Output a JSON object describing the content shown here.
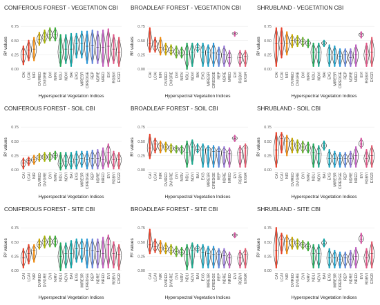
{
  "chart_data": {
    "type": "violin",
    "indices": [
      "CAI",
      "LCAI",
      "NIR",
      "DVIRED",
      "DVIGRE",
      "DVI",
      "NIRV",
      "NDLI",
      "NDVI",
      "BAI",
      "EXG",
      "MIRESR",
      "CIREDGE",
      "REP",
      "NDRE",
      "NRED",
      "EVI",
      "RGBVI",
      "EXGR"
    ],
    "ylabel": "R² values",
    "xlabel": "Hyperspectral Vegetation Indices",
    "yticks": [
      "0.00",
      "0.25",
      "0.50",
      "0.75"
    ],
    "ylim": [
      0,
      0.8
    ],
    "colors": [
      "#e8402a",
      "#e8402a",
      "#f08a0c",
      "#c9a500",
      "#a8b400",
      "#6cb42c",
      "#3cae3a",
      "#1ea85a",
      "#18a88c",
      "#14a6a6",
      "#16a4bb",
      "#1aa0cc",
      "#2a96d8",
      "#5e86dc",
      "#9474d4",
      "#c062c0",
      "#d858a4",
      "#e05888",
      "#e25c70"
    ],
    "panels": [
      {
        "title": "CONIFEROUS FOREST - VEGETATION CBI",
        "medians": [
          0.25,
          0.33,
          0.35,
          0.52,
          0.56,
          0.6,
          0.6,
          0.3,
          0.35,
          0.35,
          0.45,
          0.45,
          0.4,
          0.42,
          0.38,
          0.38,
          0.4,
          0.35,
          0.3
        ],
        "ranges": [
          [
            0.08,
            0.4
          ],
          [
            0.15,
            0.5
          ],
          [
            0.15,
            0.55
          ],
          [
            0.42,
            0.64
          ],
          [
            0.46,
            0.68
          ],
          [
            0.5,
            0.72
          ],
          [
            0.5,
            0.72
          ],
          [
            0.05,
            0.6
          ],
          [
            0.1,
            0.6
          ],
          [
            0.05,
            0.62
          ],
          [
            0.2,
            0.62
          ],
          [
            0.2,
            0.66
          ],
          [
            0.1,
            0.66
          ],
          [
            0.1,
            0.68
          ],
          [
            0.1,
            0.66
          ],
          [
            0.05,
            0.68
          ],
          [
            0.05,
            0.7
          ],
          [
            0.1,
            0.6
          ],
          [
            0.05,
            0.55
          ]
        ]
      },
      {
        "title": "BROADLEAF FOREST - VEGETATION CBI",
        "medians": [
          0.45,
          0.4,
          0.38,
          0.35,
          0.32,
          0.3,
          0.28,
          0.25,
          0.3,
          0.38,
          0.3,
          0.3,
          0.28,
          0.25,
          0.25,
          0.2,
          0.62,
          0.2,
          0.22
        ],
        "ranges": [
          [
            0.3,
            0.72
          ],
          [
            0.3,
            0.55
          ],
          [
            0.25,
            0.55
          ],
          [
            0.25,
            0.45
          ],
          [
            0.25,
            0.42
          ],
          [
            0.2,
            0.4
          ],
          [
            0.2,
            0.38
          ],
          [
            0.0,
            0.45
          ],
          [
            0.05,
            0.45
          ],
          [
            0.3,
            0.45
          ],
          [
            0.05,
            0.45
          ],
          [
            0.05,
            0.42
          ],
          [
            0.05,
            0.45
          ],
          [
            0.05,
            0.38
          ],
          [
            0.05,
            0.4
          ],
          [
            0.05,
            0.32
          ],
          [
            0.58,
            0.65
          ],
          [
            0.05,
            0.32
          ],
          [
            0.05,
            0.32
          ]
        ]
      },
      {
        "title": "SHRUBLAND - VEGETATION CBI",
        "medians": [
          0.45,
          0.45,
          0.45,
          0.5,
          0.5,
          0.48,
          0.45,
          0.3,
          0.3,
          0.45,
          0.25,
          0.25,
          0.22,
          0.25,
          0.2,
          0.25,
          0.6,
          0.25,
          0.3
        ],
        "ranges": [
          [
            0.05,
            0.72
          ],
          [
            0.2,
            0.72
          ],
          [
            0.25,
            0.65
          ],
          [
            0.38,
            0.6
          ],
          [
            0.4,
            0.58
          ],
          [
            0.4,
            0.55
          ],
          [
            0.38,
            0.52
          ],
          [
            0.05,
            0.45
          ],
          [
            0.05,
            0.45
          ],
          [
            0.4,
            0.5
          ],
          [
            0.05,
            0.42
          ],
          [
            0.05,
            0.4
          ],
          [
            0.05,
            0.35
          ],
          [
            0.05,
            0.35
          ],
          [
            0.05,
            0.35
          ],
          [
            0.05,
            0.42
          ],
          [
            0.55,
            0.65
          ],
          [
            0.05,
            0.45
          ],
          [
            0.05,
            0.55
          ]
        ]
      },
      {
        "title": "CONIFEROUS FOREST - SOIL CBI",
        "medians": [
          0.12,
          0.16,
          0.18,
          0.22,
          0.22,
          0.22,
          0.25,
          0.1,
          0.15,
          0.15,
          0.18,
          0.2,
          0.18,
          0.2,
          0.2,
          0.18,
          0.3,
          0.18,
          0.18
        ],
        "ranges": [
          [
            0.02,
            0.2
          ],
          [
            0.08,
            0.22
          ],
          [
            0.1,
            0.25
          ],
          [
            0.15,
            0.28
          ],
          [
            0.15,
            0.3
          ],
          [
            0.15,
            0.3
          ],
          [
            0.18,
            0.32
          ],
          [
            0.0,
            0.3
          ],
          [
            0.02,
            0.3
          ],
          [
            0.02,
            0.3
          ],
          [
            0.02,
            0.32
          ],
          [
            0.05,
            0.32
          ],
          [
            0.02,
            0.32
          ],
          [
            0.02,
            0.34
          ],
          [
            0.02,
            0.35
          ],
          [
            0.02,
            0.38
          ],
          [
            0.05,
            0.45
          ],
          [
            0.02,
            0.32
          ],
          [
            0.02,
            0.3
          ]
        ]
      },
      {
        "title": "BROADLEAF FOREST - SOIL CBI",
        "medians": [
          0.38,
          0.45,
          0.42,
          0.4,
          0.38,
          0.37,
          0.35,
          0.3,
          0.4,
          0.36,
          0.35,
          0.35,
          0.32,
          0.32,
          0.3,
          0.28,
          0.55,
          0.3,
          0.38
        ],
        "ranges": [
          [
            0.2,
            0.62
          ],
          [
            0.3,
            0.55
          ],
          [
            0.3,
            0.5
          ],
          [
            0.32,
            0.48
          ],
          [
            0.3,
            0.45
          ],
          [
            0.3,
            0.42
          ],
          [
            0.28,
            0.42
          ],
          [
            0.05,
            0.5
          ],
          [
            0.1,
            0.52
          ],
          [
            0.3,
            0.45
          ],
          [
            0.05,
            0.45
          ],
          [
            0.05,
            0.42
          ],
          [
            0.05,
            0.42
          ],
          [
            0.05,
            0.4
          ],
          [
            0.05,
            0.4
          ],
          [
            0.05,
            0.38
          ],
          [
            0.5,
            0.6
          ],
          [
            0.05,
            0.42
          ],
          [
            0.05,
            0.45
          ]
        ]
      },
      {
        "title": "SHRUBLAND - SOIL CBI",
        "medians": [
          0.35,
          0.55,
          0.5,
          0.45,
          0.42,
          0.4,
          0.38,
          0.3,
          0.28,
          0.42,
          0.2,
          0.2,
          0.2,
          0.2,
          0.2,
          0.25,
          0.45,
          0.2,
          0.25
        ],
        "ranges": [
          [
            0.05,
            0.65
          ],
          [
            0.3,
            0.65
          ],
          [
            0.25,
            0.6
          ],
          [
            0.3,
            0.55
          ],
          [
            0.3,
            0.52
          ],
          [
            0.3,
            0.5
          ],
          [
            0.3,
            0.48
          ],
          [
            0.05,
            0.45
          ],
          [
            0.05,
            0.42
          ],
          [
            0.35,
            0.5
          ],
          [
            0.05,
            0.35
          ],
          [
            0.05,
            0.32
          ],
          [
            0.05,
            0.3
          ],
          [
            0.05,
            0.3
          ],
          [
            0.05,
            0.32
          ],
          [
            0.05,
            0.4
          ],
          [
            0.38,
            0.55
          ],
          [
            0.05,
            0.35
          ],
          [
            0.05,
            0.42
          ]
        ]
      },
      {
        "title": "CONIFEROUS FOREST - SITE CBI",
        "medians": [
          0.22,
          0.3,
          0.35,
          0.45,
          0.5,
          0.5,
          0.5,
          0.25,
          0.3,
          0.3,
          0.38,
          0.38,
          0.35,
          0.35,
          0.33,
          0.3,
          0.45,
          0.3,
          0.28
        ],
        "ranges": [
          [
            0.05,
            0.38
          ],
          [
            0.12,
            0.45
          ],
          [
            0.15,
            0.45
          ],
          [
            0.38,
            0.55
          ],
          [
            0.4,
            0.6
          ],
          [
            0.42,
            0.6
          ],
          [
            0.42,
            0.6
          ],
          [
            0.0,
            0.48
          ],
          [
            0.05,
            0.48
          ],
          [
            0.05,
            0.52
          ],
          [
            0.15,
            0.55
          ],
          [
            0.15,
            0.55
          ],
          [
            0.05,
            0.55
          ],
          [
            0.05,
            0.55
          ],
          [
            0.05,
            0.55
          ],
          [
            0.05,
            0.58
          ],
          [
            0.05,
            0.62
          ],
          [
            0.05,
            0.5
          ],
          [
            0.02,
            0.45
          ]
        ]
      },
      {
        "title": "BROADLEAF FOREST - SITE CBI",
        "medians": [
          0.45,
          0.42,
          0.4,
          0.38,
          0.35,
          0.33,
          0.32,
          0.28,
          0.35,
          0.38,
          0.32,
          0.3,
          0.28,
          0.28,
          0.26,
          0.22,
          0.62,
          0.22,
          0.28
        ],
        "ranges": [
          [
            0.3,
            0.72
          ],
          [
            0.32,
            0.55
          ],
          [
            0.3,
            0.52
          ],
          [
            0.3,
            0.48
          ],
          [
            0.28,
            0.45
          ],
          [
            0.25,
            0.42
          ],
          [
            0.25,
            0.4
          ],
          [
            0.02,
            0.45
          ],
          [
            0.05,
            0.48
          ],
          [
            0.32,
            0.45
          ],
          [
            0.05,
            0.45
          ],
          [
            0.05,
            0.42
          ],
          [
            0.05,
            0.42
          ],
          [
            0.05,
            0.38
          ],
          [
            0.05,
            0.38
          ],
          [
            0.05,
            0.32
          ],
          [
            0.58,
            0.66
          ],
          [
            0.05,
            0.35
          ],
          [
            0.05,
            0.38
          ]
        ]
      },
      {
        "title": "SHRUBLAND - SITE CBI",
        "medians": [
          0.35,
          0.55,
          0.5,
          0.5,
          0.48,
          0.45,
          0.42,
          0.3,
          0.3,
          0.48,
          0.22,
          0.22,
          0.2,
          0.22,
          0.2,
          0.25,
          0.55,
          0.22,
          0.3
        ],
        "ranges": [
          [
            0.05,
            0.75
          ],
          [
            0.3,
            0.65
          ],
          [
            0.3,
            0.62
          ],
          [
            0.38,
            0.58
          ],
          [
            0.38,
            0.55
          ],
          [
            0.38,
            0.52
          ],
          [
            0.35,
            0.5
          ],
          [
            0.05,
            0.45
          ],
          [
            0.05,
            0.45
          ],
          [
            0.42,
            0.55
          ],
          [
            0.05,
            0.38
          ],
          [
            0.05,
            0.35
          ],
          [
            0.05,
            0.32
          ],
          [
            0.05,
            0.32
          ],
          [
            0.05,
            0.35
          ],
          [
            0.05,
            0.4
          ],
          [
            0.48,
            0.65
          ],
          [
            0.05,
            0.38
          ],
          [
            0.05,
            0.5
          ]
        ]
      }
    ]
  }
}
